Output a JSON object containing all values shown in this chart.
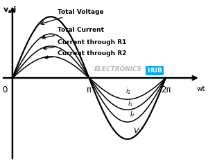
{
  "background_color": "#ffffff",
  "amplitudes": {
    "V": 1.0,
    "IT": 0.72,
    "I1": 0.52,
    "I2": 0.35
  },
  "ylabel": "v, i",
  "xlabel": "wt",
  "pi_label": "π",
  "two_pi_label": "2π",
  "zero_label": "0",
  "watermark_text": "ELECTRONICS",
  "watermark_color": "#b0b0b0",
  "hub_text": "HUB",
  "hub_bg": "#00aaff",
  "xlim": [
    -0.45,
    7.8
  ],
  "ylim": [
    -1.35,
    1.25
  ],
  "ann_total_voltage_text": "Total Voltage",
  "ann_total_current_text": "Total Current",
  "ann_r1_text": "Current through R1",
  "ann_r2_text": "Current through R2",
  "lower_i2": [
    4.75,
    -0.22
  ],
  "lower_i1": [
    4.85,
    -0.42
  ],
  "lower_IT": [
    4.95,
    -0.6
  ],
  "lower_V": [
    5.1,
    -0.85
  ]
}
